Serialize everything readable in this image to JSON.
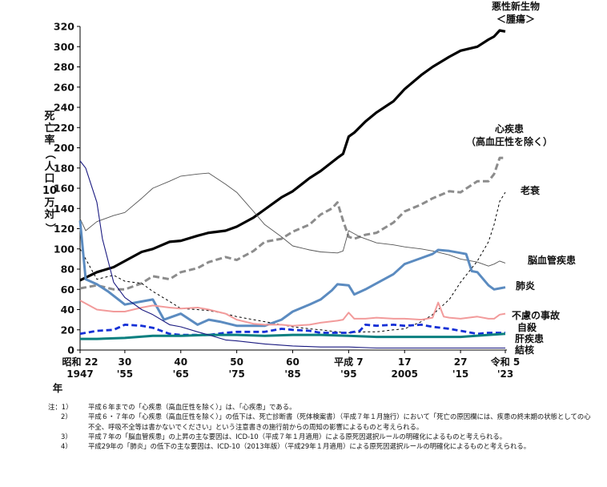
{
  "chart_data": {
    "type": "line",
    "ylabel": "死亡率（人口10万対）",
    "ylim": [
      0,
      320
    ],
    "yticks": [
      0,
      20,
      40,
      60,
      80,
      100,
      120,
      140,
      160,
      180,
      200,
      220,
      240,
      260,
      280,
      300,
      320
    ],
    "xlim": [
      1947,
      2023
    ],
    "xlabel": "年",
    "xticks_top": [
      {
        "x": 1947,
        "label": "昭和 22"
      },
      {
        "x": 1955,
        "label": "30"
      },
      {
        "x": 1965,
        "label": "40"
      },
      {
        "x": 1975,
        "label": "50"
      },
      {
        "x": 1985,
        "label": "60"
      },
      {
        "x": 1995,
        "label": "平成 7"
      },
      {
        "x": 2005,
        "label": "17"
      },
      {
        "x": 2015,
        "label": "27"
      },
      {
        "x": 2023,
        "label": "令和 5"
      }
    ],
    "xticks_bottom": [
      {
        "x": 1947,
        "label": "1947"
      },
      {
        "x": 1955,
        "label": "'55"
      },
      {
        "x": 1965,
        "label": "'65"
      },
      {
        "x": 1975,
        "label": "'75"
      },
      {
        "x": 1985,
        "label": "'85"
      },
      {
        "x": 1995,
        "label": "'95"
      },
      {
        "x": 2005,
        "label": "2005"
      },
      {
        "x": 2015,
        "label": "'15"
      },
      {
        "x": 2023,
        "label": "'23"
      }
    ],
    "series": [
      {
        "name": "悪性新生物",
        "name2": "＜腫瘍＞",
        "color": "#000000",
        "dash": "",
        "width": 3.2,
        "x": [
          1947,
          1950,
          1953,
          1955,
          1958,
          1960,
          1963,
          1965,
          1968,
          1970,
          1973,
          1975,
          1978,
          1980,
          1983,
          1985,
          1988,
          1990,
          1993,
          1994,
          1995,
          1996,
          1998,
          2000,
          2003,
          2005,
          2008,
          2010,
          2013,
          2015,
          2018,
          2020,
          2021,
          2022,
          2023
        ],
        "y": [
          69,
          77,
          82,
          88,
          97,
          100,
          107,
          108,
          113,
          116,
          118,
          122,
          131,
          139,
          151,
          157,
          170,
          177,
          190,
          194,
          211,
          215,
          226,
          235,
          246,
          258,
          272,
          280,
          290,
          296,
          300,
          307,
          310,
          316,
          315
        ]
      },
      {
        "name": "心疾患",
        "name2": "（高血圧性を除く）",
        "color": "#8c8c8c",
        "dash": "8,4",
        "width": 3,
        "x": [
          1947,
          1950,
          1953,
          1955,
          1958,
          1960,
          1963,
          1965,
          1968,
          1970,
          1973,
          1975,
          1978,
          1980,
          1983,
          1985,
          1988,
          1990,
          1992,
          1993,
          1994,
          1995,
          1996,
          1998,
          2000,
          2003,
          2005,
          2008,
          2010,
          2013,
          2015,
          2018,
          2020,
          2021,
          2022,
          2023
        ],
        "y": [
          61,
          64,
          60,
          60,
          66,
          73,
          70,
          77,
          81,
          87,
          92,
          89,
          98,
          107,
          110,
          117,
          124,
          134,
          140,
          146,
          128,
          112,
          110,
          114,
          116,
          126,
          137,
          144,
          150,
          157,
          156,
          167,
          167,
          174,
          190,
          190
        ]
      },
      {
        "name": "老衰",
        "name2": "",
        "color": "#000000",
        "dash": "3,3",
        "width": 1,
        "x": [
          1947,
          1950,
          1953,
          1955,
          1958,
          1960,
          1963,
          1965,
          1968,
          1970,
          1973,
          1975,
          1978,
          1980,
          1983,
          1985,
          1988,
          1990,
          1993,
          1995,
          1998,
          2000,
          2003,
          2005,
          2008,
          2010,
          2013,
          2015,
          2018,
          2020,
          2021,
          2022,
          2023
        ],
        "y": [
          100,
          70,
          74,
          68,
          66,
          58,
          48,
          41,
          40,
          39,
          36,
          33,
          30,
          28,
          25,
          23,
          21,
          20,
          18,
          17,
          18,
          18,
          20,
          21,
          28,
          35,
          50,
          67,
          88,
          107,
          124,
          147,
          156
        ]
      },
      {
        "name": "脳血管疾患",
        "name2": "",
        "color": "#555555",
        "dash": "",
        "width": 0.9,
        "x": [
          1947,
          1948,
          1950,
          1953,
          1955,
          1958,
          1960,
          1963,
          1965,
          1968,
          1970,
          1973,
          1975,
          1978,
          1980,
          1983,
          1985,
          1988,
          1990,
          1993,
          1994,
          1995,
          1997,
          2000,
          2003,
          2005,
          2008,
          2010,
          2013,
          2015,
          2018,
          2020,
          2021,
          2022,
          2023
        ],
        "y": [
          130,
          118,
          127,
          133,
          136,
          150,
          160,
          167,
          172,
          174,
          175,
          164,
          156,
          137,
          124,
          112,
          103,
          99,
          97,
          96,
          98,
          118,
          112,
          106,
          104,
          102,
          100,
          98,
          94,
          90,
          87,
          83,
          85,
          88,
          86
        ]
      },
      {
        "name": "肺炎",
        "name2": "",
        "color": "#5b8bc0",
        "dash": "",
        "width": 3,
        "x": [
          1947,
          1948,
          1950,
          1952,
          1955,
          1958,
          1960,
          1962,
          1963,
          1965,
          1968,
          1970,
          1972,
          1975,
          1978,
          1980,
          1983,
          1985,
          1988,
          1990,
          1992,
          1993,
          1995,
          1996,
          1998,
          2000,
          2003,
          2005,
          2008,
          2010,
          2011,
          2013,
          2015,
          2016,
          2017,
          2018,
          2020,
          2021,
          2022,
          2023
        ],
        "y": [
          128,
          70,
          65,
          58,
          45,
          48,
          50,
          30,
          32,
          36,
          25,
          30,
          28,
          24,
          24,
          24,
          30,
          38,
          45,
          50,
          59,
          65,
          64,
          55,
          60,
          66,
          75,
          85,
          91,
          95,
          99,
          98,
          96,
          95,
          78,
          77,
          64,
          60,
          61,
          62
        ]
      },
      {
        "name": "不慮の事故",
        "name2": "",
        "color": "#f29b9b",
        "dash": "",
        "width": 2,
        "x": [
          1947,
          1950,
          1953,
          1955,
          1958,
          1960,
          1963,
          1965,
          1968,
          1970,
          1973,
          1975,
          1978,
          1980,
          1983,
          1985,
          1988,
          1990,
          1993,
          1994,
          1995,
          1996,
          1998,
          2000,
          2003,
          2005,
          2008,
          2010,
          2011,
          2012,
          2013,
          2015,
          2018,
          2020,
          2021,
          2022,
          2023
        ],
        "y": [
          49,
          40,
          38,
          38,
          42,
          44,
          42,
          41,
          42,
          40,
          36,
          30,
          26,
          25,
          25,
          24,
          25,
          27,
          29,
          30,
          37,
          31,
          31,
          32,
          31,
          31,
          30,
          32,
          47,
          33,
          32,
          31,
          33,
          31,
          31,
          35,
          36
        ]
      },
      {
        "name": "自殺",
        "name2": "",
        "color": "#1530d6",
        "dash": "7,4",
        "width": 2.8,
        "x": [
          1947,
          1950,
          1953,
          1955,
          1958,
          1960,
          1963,
          1965,
          1968,
          1970,
          1973,
          1975,
          1978,
          1980,
          1983,
          1985,
          1988,
          1990,
          1993,
          1995,
          1997,
          1998,
          2000,
          2003,
          2005,
          2008,
          2010,
          2013,
          2015,
          2018,
          2020,
          2021,
          2022,
          2023
        ],
        "y": [
          16,
          19,
          20,
          25,
          24,
          22,
          16,
          15,
          15,
          15,
          17,
          18,
          18,
          18,
          21,
          20,
          19,
          17,
          17,
          17,
          19,
          25,
          24,
          25,
          24,
          25,
          23,
          21,
          19,
          16,
          17,
          17,
          17,
          17
        ]
      },
      {
        "name": "肝疾患",
        "name2": "",
        "color": "#0a7f7f",
        "dash": "",
        "width": 3,
        "x": [
          1947,
          1950,
          1955,
          1960,
          1965,
          1970,
          1975,
          1980,
          1985,
          1990,
          1995,
          2000,
          2005,
          2010,
          2015,
          2020,
          2023
        ],
        "y": [
          11,
          11,
          12,
          14,
          14,
          15,
          15,
          14,
          15,
          15,
          14,
          13,
          13,
          13,
          13,
          15,
          16
        ]
      },
      {
        "name": "結核",
        "name2": "",
        "color": "#1a1a80",
        "dash": "",
        "width": 1.1,
        "x": [
          1947,
          1948,
          1950,
          1951,
          1953,
          1955,
          1958,
          1960,
          1963,
          1965,
          1968,
          1970,
          1973,
          1975,
          1980,
          1985,
          1990,
          1995,
          2000,
          2005,
          2010,
          2015,
          2020,
          2023
        ],
        "y": [
          187,
          180,
          146,
          110,
          67,
          52,
          40,
          35,
          25,
          23,
          18,
          15,
          10,
          9,
          6,
          4,
          3,
          3,
          2,
          2,
          2,
          2,
          2,
          2
        ]
      }
    ]
  },
  "notes": {
    "head": "注：1）",
    "items": [
      {
        "num": "1）",
        "text": "平成６年までの「心疾患（高血圧性を除く）」は、「心疾患」である。"
      },
      {
        "num": "2）",
        "text": "平成６・７年の「心疾患（高血圧性を除く）」の低下は、死亡診断書（死体検案書）（平成７年１月施行）において「死亡の原因欄には、疾患の終末期の状態としての心不全、呼吸不全等は書かないでください」という注意書きの施行前からの周知の影響によるものと考えられる。"
      },
      {
        "num": "3）",
        "text": "平成７年の「脳血管疾患」の上昇の主な要因は、ICD-10（平成７年１月適用）による原死因選択ルールの明確化によるものと考えられる。"
      },
      {
        "num": "4）",
        "text": "平成29年の「肺炎」の低下の主な要因は、ICD-10（2013年版）（平成29年１月適用）による原死因選択ルールの明確化によるものと考えられる。"
      }
    ]
  }
}
